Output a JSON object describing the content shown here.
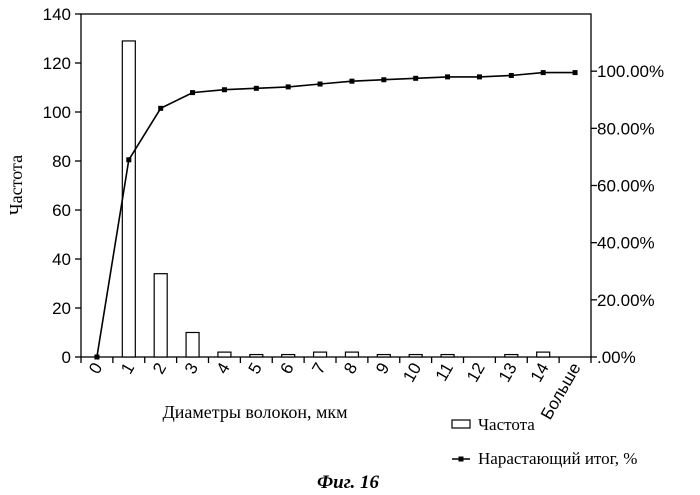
{
  "chart_data": {
    "type": "bar",
    "categories": [
      "0",
      "1",
      "2",
      "3",
      "4",
      "5",
      "6",
      "7",
      "8",
      "9",
      "10",
      "11",
      "12",
      "13",
      "14",
      "Больше"
    ],
    "xlabel": "Диаметры волокон, мкм",
    "ylabel": "Частота",
    "ylim": [
      0,
      140
    ],
    "yticks": [
      "0",
      "20",
      "40",
      "60",
      "80",
      "100",
      "120",
      "140"
    ],
    "y2lim": [
      0,
      1.2
    ],
    "y2ticks": [
      ".00%",
      "20.00%",
      "40.00%",
      "60.00%",
      "80.00%",
      "100.00%"
    ],
    "grid": false,
    "legend_position": "bottom-right",
    "series": [
      {
        "name": "Частота",
        "kind": "bar",
        "axis": "left",
        "values": [
          0,
          129,
          34,
          10,
          2,
          1,
          1,
          2,
          2,
          1,
          1,
          1,
          0,
          1,
          2,
          0
        ]
      },
      {
        "name": "Нарастающий итог, %",
        "kind": "line",
        "axis": "right",
        "values": [
          0,
          0.69,
          0.87,
          0.925,
          0.935,
          0.94,
          0.945,
          0.955,
          0.965,
          0.97,
          0.975,
          0.98,
          0.98,
          0.985,
          0.995,
          0.995
        ]
      }
    ]
  },
  "caption": "Фиг. 16"
}
